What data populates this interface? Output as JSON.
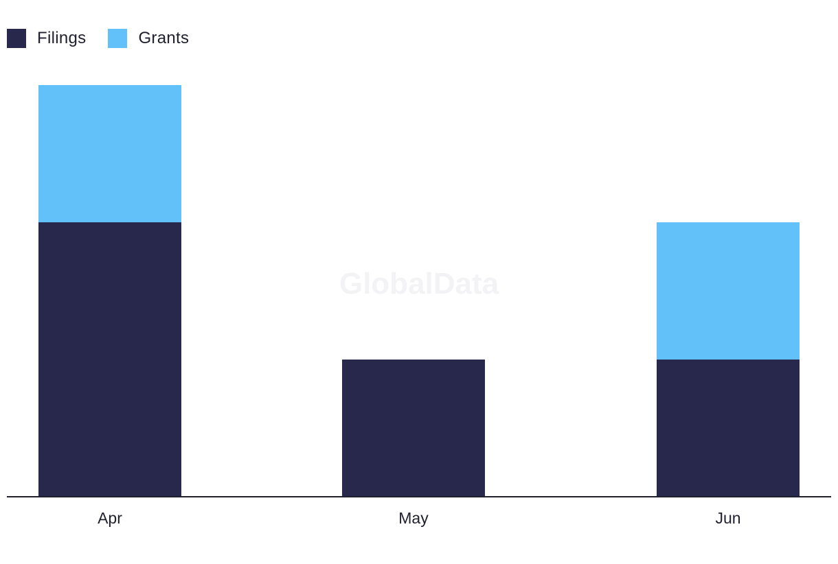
{
  "watermark": "GlobalData",
  "colors": {
    "filings": "#27284b",
    "grants": "#62c1f8",
    "axis": "#1f1f2e"
  },
  "legend": {
    "items": [
      {
        "label": "Filings",
        "color": "#27284b"
      },
      {
        "label": "Grants",
        "color": "#62c1f8"
      }
    ]
  },
  "chart_data": {
    "type": "bar",
    "stacked": true,
    "categories": [
      "Apr",
      "May",
      "Jun"
    ],
    "series": [
      {
        "name": "Filings",
        "values": [
          2,
          1,
          1
        ]
      },
      {
        "name": "Grants",
        "values": [
          1,
          0,
          1
        ]
      }
    ],
    "ylim": [
      0,
      3
    ],
    "grid": false,
    "legend_position": "top-left",
    "title": "",
    "xlabel": "",
    "ylabel": ""
  }
}
